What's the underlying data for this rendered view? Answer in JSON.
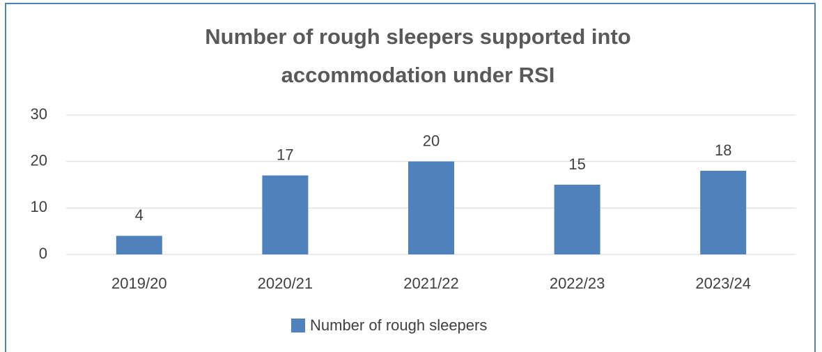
{
  "chart_data": {
    "type": "bar",
    "title": [
      "Number of rough sleepers supported into",
      "accommodation under RSI"
    ],
    "categories": [
      "2019/20",
      "2020/21",
      "2021/22",
      "2022/23",
      "2023/24"
    ],
    "series": [
      {
        "name": "Number of rough sleepers",
        "color": "#4f81bd",
        "values": [
          4,
          17,
          20,
          15,
          18
        ]
      }
    ],
    "ylim": [
      0,
      30
    ],
    "yticks": [
      0,
      10,
      20,
      30
    ],
    "grid": true,
    "legend": "bottom",
    "data_labels": true
  }
}
